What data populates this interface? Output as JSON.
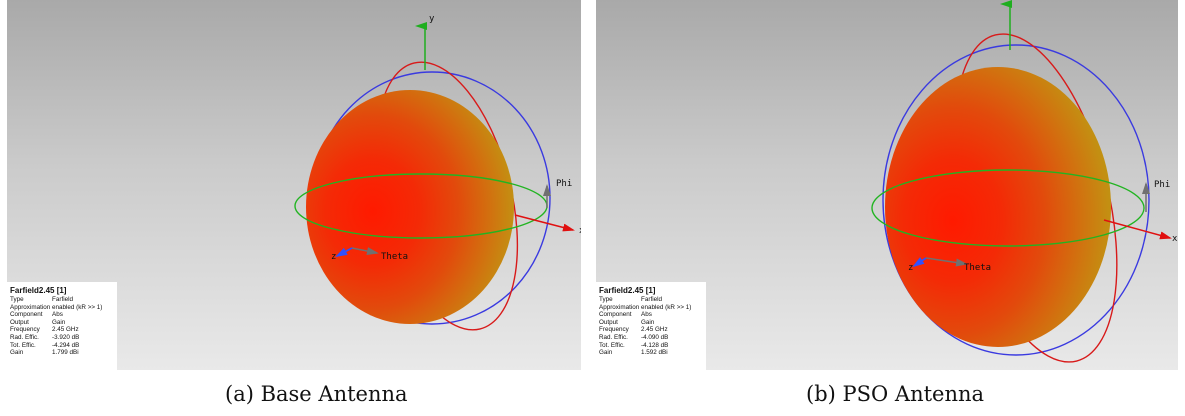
{
  "panels": [
    {
      "id": "a",
      "axes": {
        "y": "y",
        "x": "x",
        "phi": "Phi",
        "theta": "Theta",
        "z": "z"
      },
      "info": {
        "title": "Farfield2.45 [1]",
        "rows": [
          {
            "key": "Type",
            "value": "Farfield"
          },
          {
            "key": "Approximation",
            "value": "enabled (kR >> 1)"
          },
          {
            "key": "Component",
            "value": "Abs"
          },
          {
            "key": "Output",
            "value": "Gain"
          },
          {
            "key": "Frequency",
            "value": "2.45 GHz"
          },
          {
            "key": "Rad. Effic.",
            "value": "-3.920 dB"
          },
          {
            "key": "Tot. Effic.",
            "value": "-4.294 dB"
          },
          {
            "key": "Gain",
            "value": "1.799 dBi"
          }
        ]
      },
      "caption": "(a) Base Antenna"
    },
    {
      "id": "b",
      "axes": {
        "y": "",
        "x": "x",
        "phi": "Phi",
        "theta": "Theta",
        "z": "z"
      },
      "info": {
        "title": "Farfield2.45 [1]",
        "rows": [
          {
            "key": "Type",
            "value": "Farfield"
          },
          {
            "key": "Approximation",
            "value": "enabled (kR >> 1)"
          },
          {
            "key": "Component",
            "value": "Abs"
          },
          {
            "key": "Output",
            "value": "Gain"
          },
          {
            "key": "Frequency",
            "value": "2.45 GHz"
          },
          {
            "key": "Rad. Effic.",
            "value": "-4.090 dB"
          },
          {
            "key": "Tot. Effic.",
            "value": "-4.128 dB"
          },
          {
            "key": "Gain",
            "value": "1.592 dBi"
          }
        ]
      },
      "caption": "(b) PSO Antenna"
    }
  ],
  "colors": {
    "y_axis": "#1fae1f",
    "x_axis": "#e01010",
    "z_axis": "#3050ff",
    "theta_axis": "#707070",
    "phi_axis": "#707070",
    "blue_ring": "#3a3ae0",
    "red_ring": "#d81a1a",
    "green_ring": "#22b422",
    "sphere_outer": "#b99a10",
    "sphere_inner": "#ff1a00"
  }
}
